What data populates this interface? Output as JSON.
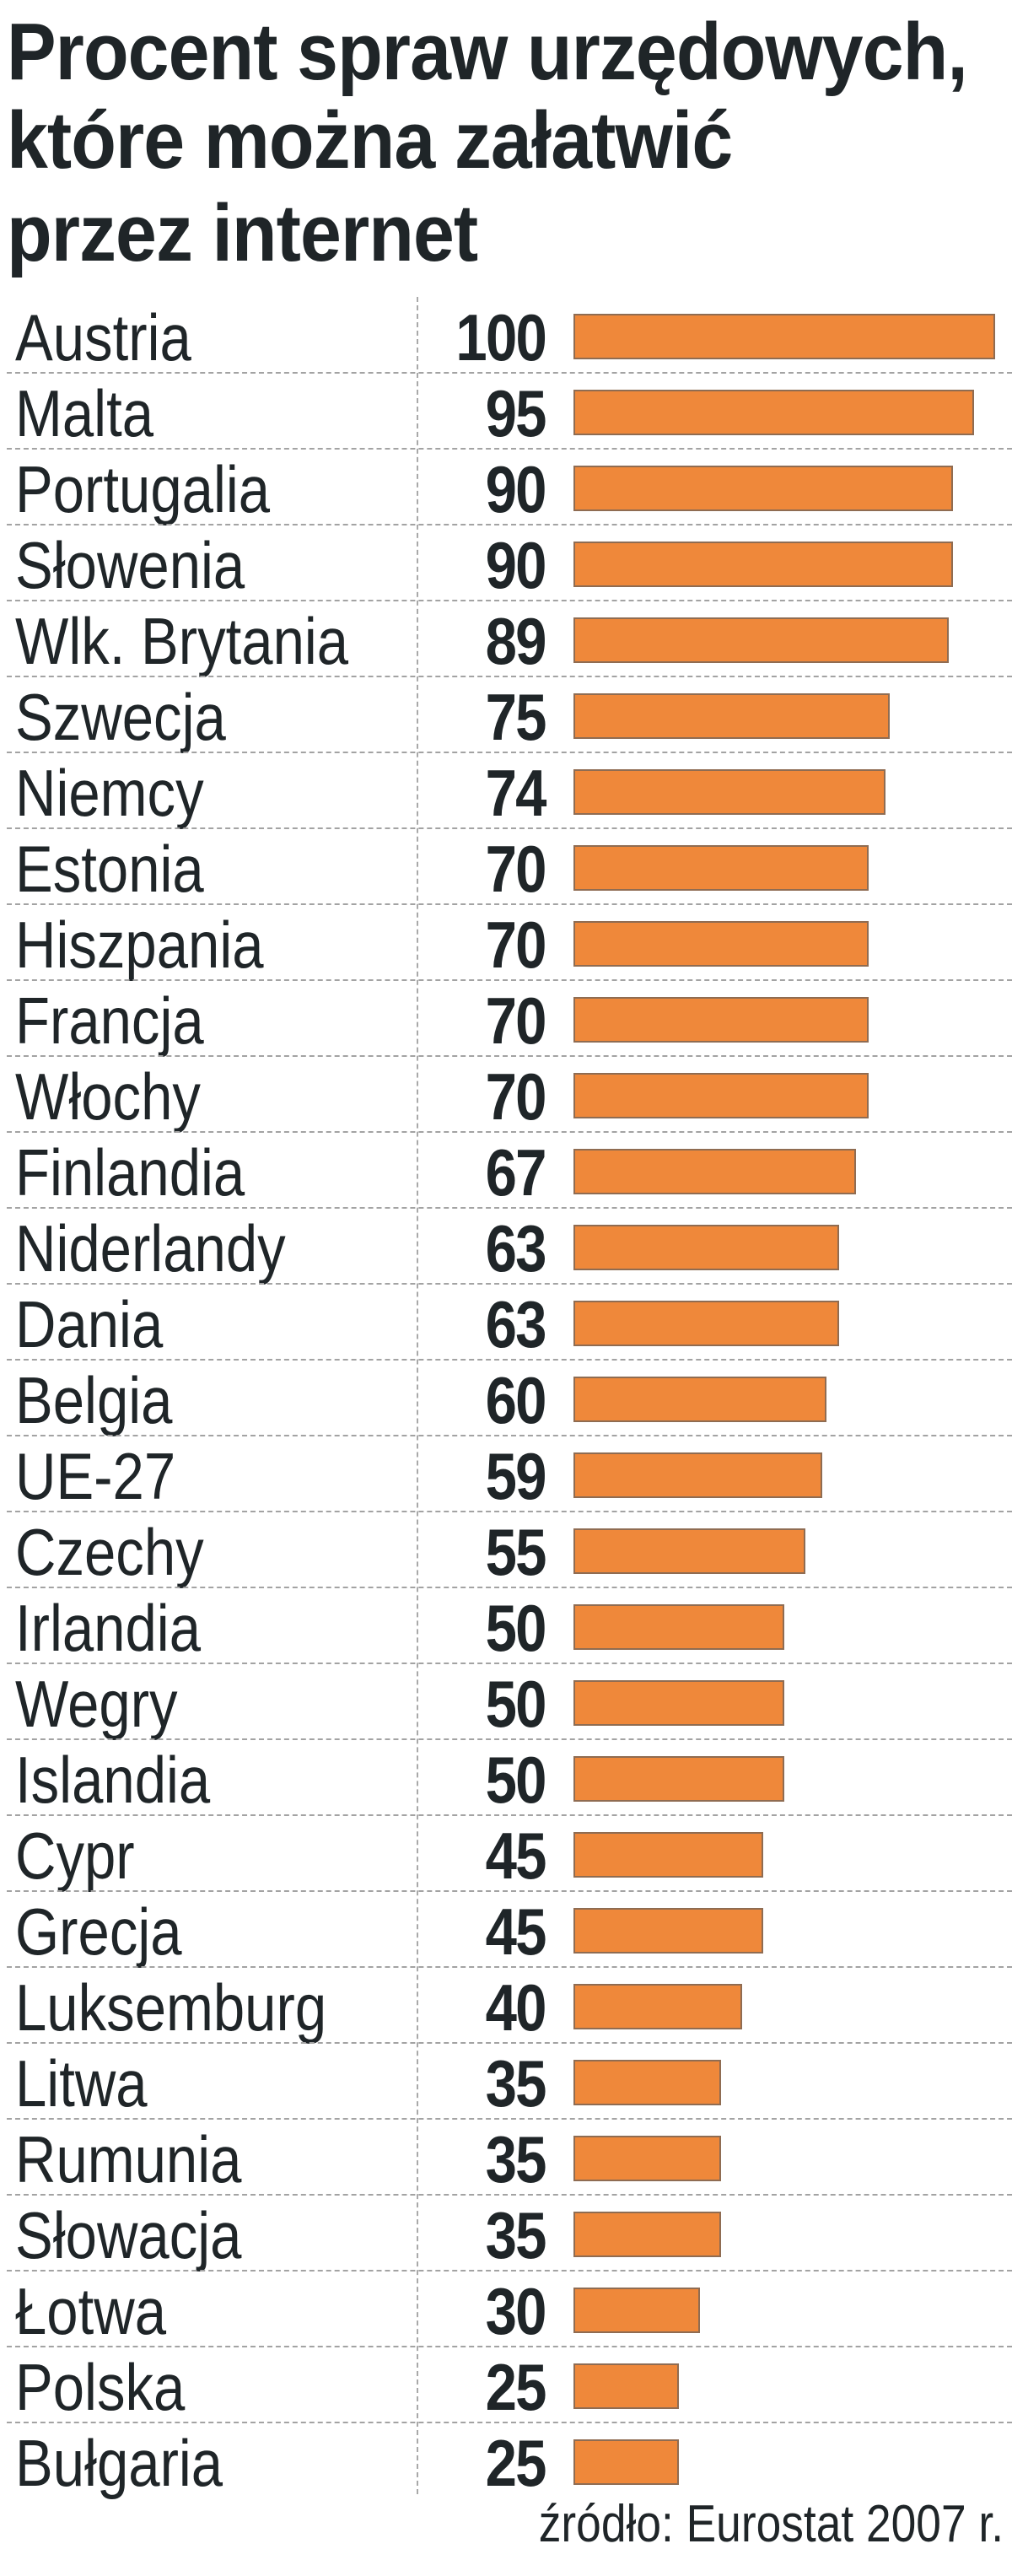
{
  "title": {
    "lines": [
      "Procent spraw urzędowych,",
      "które można załatwić",
      "przez internet"
    ]
  },
  "source": "źródło: Eurostat 2007 r.",
  "colors": {
    "bar_fill": "#ef883a",
    "bar_border": "#8f6c52",
    "text": "#1f2528",
    "grid": "#a3a3a3"
  },
  "rows": [
    {
      "label": "Austria",
      "value": "100"
    },
    {
      "label": "Malta",
      "value": "95"
    },
    {
      "label": "Portugalia",
      "value": "90"
    },
    {
      "label": "Słowenia",
      "value": "90"
    },
    {
      "label": "Wlk. Brytania",
      "value": "89"
    },
    {
      "label": "Szwecja",
      "value": "75"
    },
    {
      "label": "Niemcy",
      "value": "74"
    },
    {
      "label": "Estonia",
      "value": "70"
    },
    {
      "label": "Hiszpania",
      "value": "70"
    },
    {
      "label": "Francja",
      "value": "70"
    },
    {
      "label": "Włochy",
      "value": "70"
    },
    {
      "label": "Finlandia",
      "value": "67"
    },
    {
      "label": "Niderlandy",
      "value": "63"
    },
    {
      "label": "Dania",
      "value": "63"
    },
    {
      "label": "Belgia",
      "value": "60"
    },
    {
      "label": "UE-27",
      "value": "59"
    },
    {
      "label": "Czechy",
      "value": "55"
    },
    {
      "label": "Irlandia",
      "value": "50"
    },
    {
      "label": "Wegry",
      "value": "50"
    },
    {
      "label": "Islandia",
      "value": "50"
    },
    {
      "label": "Cypr",
      "value": "45"
    },
    {
      "label": "Grecja",
      "value": "45"
    },
    {
      "label": "Luksemburg",
      "value": "40"
    },
    {
      "label": "Litwa",
      "value": "35"
    },
    {
      "label": "Rumunia",
      "value": "35"
    },
    {
      "label": "Słowacja",
      "value": "35"
    },
    {
      "label": "Łotwa",
      "value": "30"
    },
    {
      "label": "Polska",
      "value": "25"
    },
    {
      "label": "Bułgaria",
      "value": "25"
    }
  ],
  "chart_data": {
    "type": "bar",
    "orientation": "horizontal",
    "title": "Procent spraw urzędowych, które można załatwić przez internet",
    "xlabel": "",
    "ylabel": "",
    "xlim": [
      0,
      100
    ],
    "grid": false,
    "legend": null,
    "source": "źródło: Eurostat 2007 r.",
    "categories": [
      "Austria",
      "Malta",
      "Portugalia",
      "Słowenia",
      "Wlk. Brytania",
      "Szwecja",
      "Niemcy",
      "Estonia",
      "Hiszpania",
      "Francja",
      "Włochy",
      "Finlandia",
      "Niderlandy",
      "Dania",
      "Belgia",
      "UE-27",
      "Czechy",
      "Irlandia",
      "Wegry",
      "Islandia",
      "Cypr",
      "Grecja",
      "Luksemburg",
      "Litwa",
      "Rumunia",
      "Słowacja",
      "Łotwa",
      "Polska",
      "Bułgaria"
    ],
    "values": [
      100,
      95,
      90,
      90,
      89,
      75,
      74,
      70,
      70,
      70,
      70,
      67,
      63,
      63,
      60,
      59,
      55,
      50,
      50,
      50,
      45,
      45,
      40,
      35,
      35,
      35,
      30,
      25,
      25
    ],
    "bar_color": "#ef883a"
  }
}
